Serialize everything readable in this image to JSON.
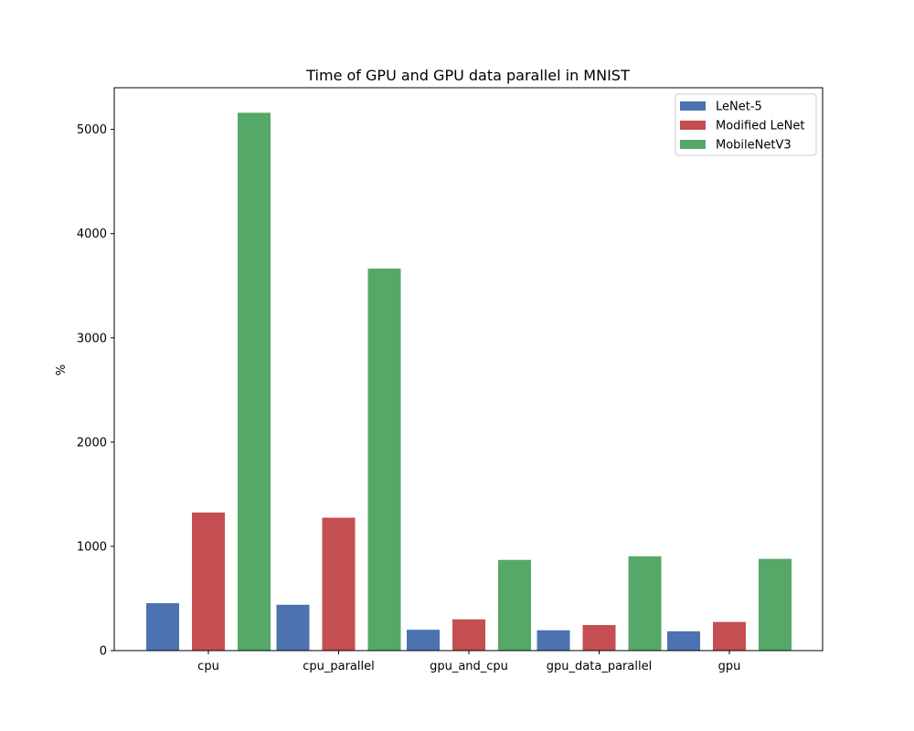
{
  "chart_data": {
    "type": "bar",
    "title": "Time of GPU and GPU data parallel in MNIST",
    "xlabel": "",
    "ylabel": "%",
    "categories": [
      "cpu",
      "cpu_parallel",
      "gpu_and_cpu",
      "gpu_data_parallel",
      "gpu"
    ],
    "series": [
      {
        "name": "LeNet-5",
        "color": "#4c72b0",
        "values": [
          455,
          440,
          200,
          195,
          185
        ]
      },
      {
        "name": "Modified LeNet",
        "color": "#c44e52",
        "values": [
          1325,
          1275,
          300,
          245,
          275
        ]
      },
      {
        "name": "MobileNetV3",
        "color": "#55a868",
        "values": [
          5160,
          3665,
          870,
          905,
          880
        ]
      }
    ],
    "ylim": [
      0,
      5400
    ],
    "yticks": [
      0,
      1000,
      2000,
      3000,
      4000,
      5000
    ],
    "grid": false,
    "legend_position": "top-right"
  }
}
